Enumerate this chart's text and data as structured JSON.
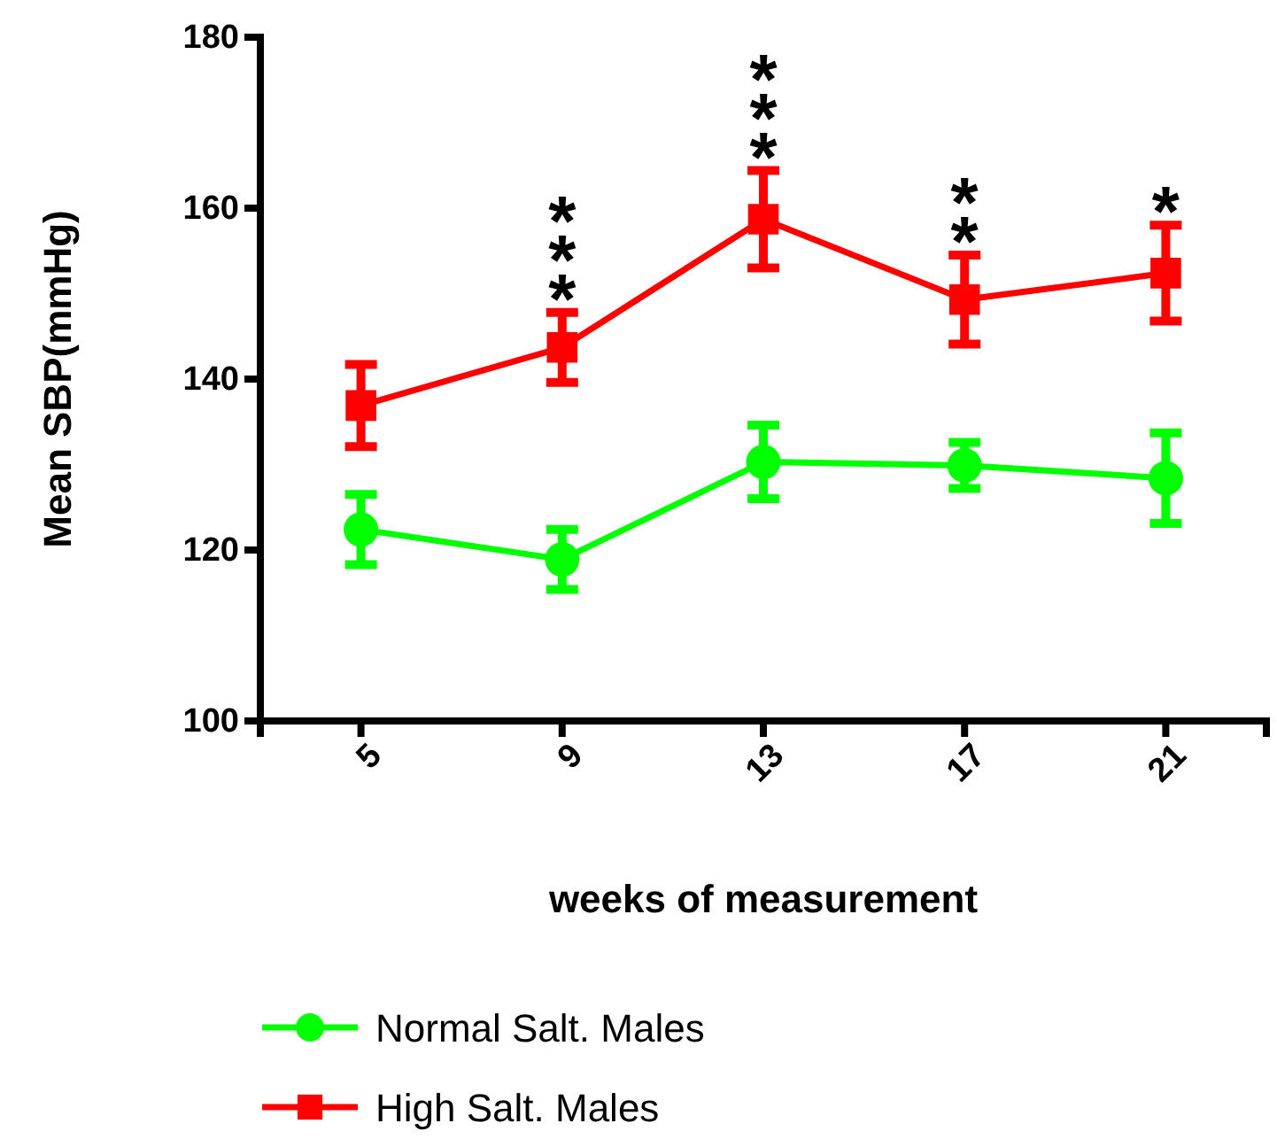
{
  "chart_data": {
    "type": "line",
    "xlabel": "weeks of measurement",
    "ylabel": "Mean SBP(mmHg)",
    "categories": [
      "5",
      "9",
      "13",
      "17",
      "21"
    ],
    "ylim": [
      100,
      180
    ],
    "yticks": [
      100,
      120,
      140,
      160,
      180
    ],
    "grid": false,
    "legend": "bottom",
    "line_style": "solid",
    "series": [
      {
        "name": "Normal Salt. Males",
        "color": "#00ff00",
        "marker": "circle",
        "values": [
          122.4,
          118.9,
          130.3,
          129.9,
          128.4
        ],
        "errors": [
          4.1,
          3.5,
          4.3,
          2.7,
          5.3
        ]
      },
      {
        "name": "High Salt. Males",
        "color": "#ff0000",
        "marker": "square",
        "values": [
          136.9,
          143.7,
          158.7,
          149.3,
          152.4
        ],
        "errors": [
          4.8,
          4.1,
          5.7,
          5.2,
          5.6
        ]
      }
    ],
    "annotations": [
      {
        "text": "***",
        "x": "9",
        "y": 143.7
      },
      {
        "text": "***",
        "x": "13",
        "y": 158.7
      },
      {
        "text": "**",
        "x": "17",
        "y": 149.3
      },
      {
        "text": "*",
        "x": "21",
        "y": 152.4
      }
    ]
  }
}
